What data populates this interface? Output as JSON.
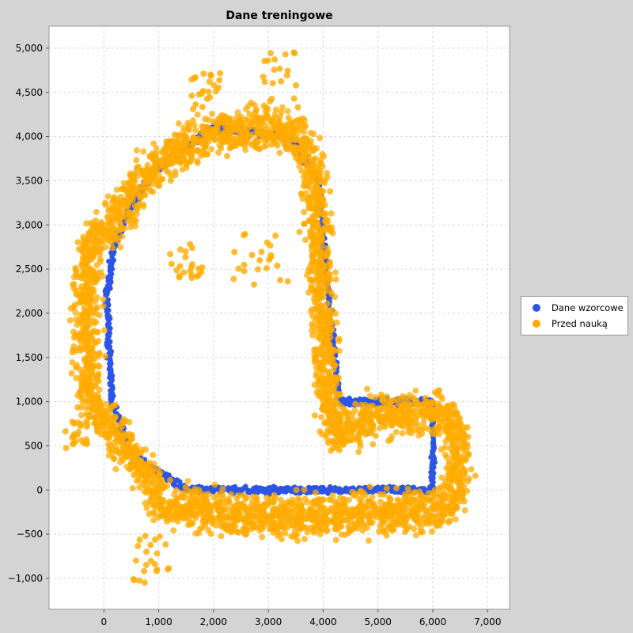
{
  "chart_data": {
    "type": "scatter",
    "title": "Dane treningowe",
    "xlabel": "",
    "ylabel": "",
    "xlim": [
      -1000,
      7400
    ],
    "ylim": [
      -1350,
      5250
    ],
    "x_ticks": [
      0,
      1000,
      2000,
      3000,
      4000,
      5000,
      6000,
      7000
    ],
    "x_tick_labels": [
      "0",
      "1,000",
      "2,000",
      "3,000",
      "4,000",
      "5,000",
      "6,000",
      "7,000"
    ],
    "y_ticks": [
      -1000,
      -500,
      0,
      500,
      1000,
      1500,
      2000,
      2500,
      3000,
      3500,
      4000,
      4500,
      5000
    ],
    "y_tick_labels": [
      "−1,000",
      "−500",
      "0",
      "500",
      "1,000",
      "1,500",
      "2,000",
      "2,500",
      "3,000",
      "3,500",
      "4,000",
      "4,500",
      "5,000"
    ],
    "grid": true,
    "legend_position": "right",
    "series": [
      {
        "name": "Dane wzorcowe",
        "color": "#2c55e8",
        "path": [
          [
            200,
            2800
          ],
          [
            50,
            2200
          ],
          [
            150,
            1000
          ],
          [
            500,
            400
          ],
          [
            1500,
            0
          ],
          [
            6000,
            0
          ],
          [
            6000,
            1000
          ],
          [
            4300,
            1000
          ],
          [
            4200,
            1500
          ],
          [
            4050,
            2500
          ],
          [
            3900,
            3500
          ],
          [
            3400,
            4000
          ],
          [
            2000,
            4100
          ],
          [
            900,
            3600
          ],
          [
            400,
            3100
          ],
          [
            200,
            2800
          ]
        ]
      },
      {
        "name": "Przed nauką",
        "color": "#ffab00",
        "path": [
          [
            -250,
            2800
          ],
          [
            -350,
            2000
          ],
          [
            -250,
            1000
          ],
          [
            400,
            500
          ],
          [
            1200,
            -200
          ],
          [
            3000,
            -300
          ],
          [
            5500,
            -250
          ],
          [
            6300,
            -200
          ],
          [
            6500,
            200
          ],
          [
            6400,
            800
          ],
          [
            6000,
            900
          ],
          [
            4800,
            800
          ],
          [
            4250,
            600
          ],
          [
            4100,
            1000
          ],
          [
            3950,
            2500
          ],
          [
            3850,
            3500
          ],
          [
            3600,
            4000
          ],
          [
            3000,
            4100
          ],
          [
            2000,
            4050
          ],
          [
            1200,
            3800
          ],
          [
            700,
            3500
          ],
          [
            300,
            3100
          ],
          [
            -250,
            2800
          ]
        ],
        "clusters": [
          {
            "x": [
              1100,
              1800
            ],
            "y": [
              2400,
              2800
            ]
          },
          {
            "x": [
              2300,
              3400
            ],
            "y": [
              2300,
              2900
            ]
          },
          {
            "x": [
              500,
              1200
            ],
            "y": [
              -1050,
              -500
            ]
          },
          {
            "x": [
              2900,
              3600
            ],
            "y": [
              4300,
              5000
            ]
          },
          {
            "x": [
              1600,
              2200
            ],
            "y": [
              4300,
              4750
            ]
          },
          {
            "x": [
              -700,
              -300
            ],
            "y": [
              450,
              800
            ]
          }
        ]
      }
    ]
  }
}
